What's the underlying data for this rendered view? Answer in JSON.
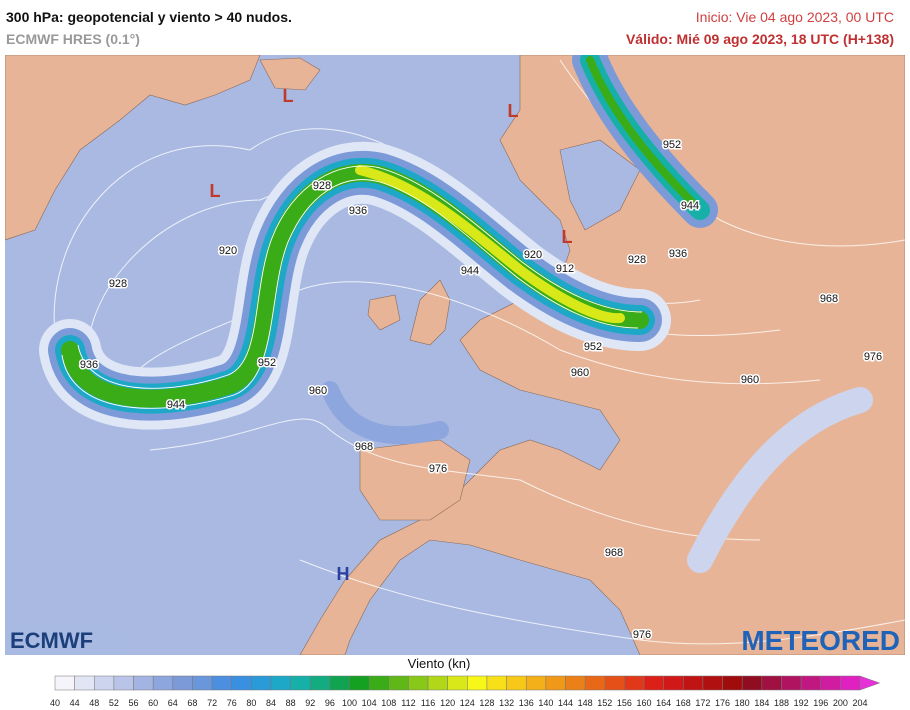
{
  "header": {
    "title": "300 hPa: geopotencial y viento > 40 nudos.",
    "subtitle": "ECMWF HRES (0.1°)",
    "init": "Inicio: Vie 04 ago 2023, 00 UTC",
    "valid": "Válido: Mié 09 ago 2023, 18 UTC (H+138)"
  },
  "map": {
    "contour_labels": [
      928,
      936,
      920,
      928,
      936,
      944,
      952,
      960,
      968,
      976,
      944,
      920,
      912,
      928,
      936,
      952,
      944,
      968,
      976,
      952,
      960,
      960,
      968,
      976
    ],
    "lows": [
      "L",
      "L",
      "L",
      "L"
    ],
    "highs": [
      "H"
    ]
  },
  "colorbar": {
    "title": "Viento (kn)",
    "ticks": [
      40,
      44,
      48,
      52,
      56,
      60,
      64,
      68,
      72,
      76,
      80,
      84,
      88,
      92,
      96,
      100,
      104,
      108,
      112,
      116,
      120,
      124,
      128,
      132,
      136,
      140,
      144,
      148,
      152,
      156,
      160,
      164,
      168,
      172,
      176,
      180,
      184,
      188,
      192,
      196,
      200,
      204
    ],
    "colors": [
      "#f4f4fa",
      "#e2e6f4",
      "#cdd4ee",
      "#b9c4e8",
      "#a3b4e2",
      "#8ea6de",
      "#7c9ad8",
      "#6a96dc",
      "#4c8ee0",
      "#3a90e0",
      "#2a9ad8",
      "#1ea8c8",
      "#16b0a8",
      "#12ac80",
      "#10a450",
      "#14a020",
      "#3aac18",
      "#60b818",
      "#88c818",
      "#b0d818",
      "#d8e818",
      "#f8f818",
      "#f8e018",
      "#f8c818",
      "#f4b018",
      "#f09818",
      "#ec8018",
      "#e86818",
      "#e45018",
      "#e03818",
      "#dc2018",
      "#d01818",
      "#c01414",
      "#b01010",
      "#a00c0c",
      "#900c20",
      "#a01040",
      "#b01460",
      "#c01880",
      "#d01ca0",
      "#e020c0",
      "#e830d8"
    ]
  },
  "logos": {
    "left": "ECMWF",
    "right": "METEORED"
  }
}
